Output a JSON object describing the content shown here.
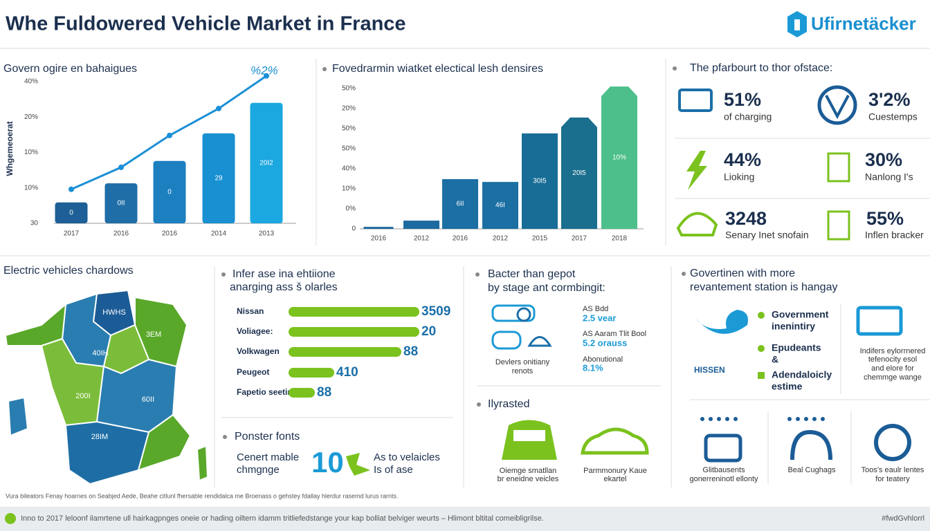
{
  "header": {
    "title": "Whe Fuldowered Vehicle Market in France",
    "logo": "Ufirnetäcker"
  },
  "chart_data": [
    {
      "type": "bar",
      "title": "Govern ogire en bahaigues",
      "annotation": "%2%",
      "y_axis_label": "Whgemeoerat",
      "y_labels": [
        "40%",
        "20%",
        "10%",
        "10%",
        "30"
      ],
      "categories": [
        "2017",
        "2016",
        "2016",
        "2014",
        "2013"
      ],
      "values": [
        5.9,
        11.3,
        17.6,
        25.4,
        34
      ],
      "bar_texts": [
        "0",
        "0II",
        "0",
        "29",
        "20I2"
      ],
      "bar_colors": [
        "#1d5f96",
        "#1f6ea8",
        "#1c7fc0",
        "#1890d1",
        "#1ba7e0"
      ],
      "ylim": [
        0,
        40
      ],
      "line": {
        "values": [
          9.6,
          15.8,
          24.8,
          32.4,
          41.6
        ],
        "color": "#1a8fd6"
      }
    },
    {
      "type": "bar",
      "title": "Fovedrarmin wiatket electical lesh densires",
      "y_labels": [
        "50%",
        "20%",
        "50%",
        "50%",
        "40%",
        "10%",
        "0%",
        "0"
      ],
      "categories": [
        "2016",
        "2012",
        "2016",
        "2012",
        "2015",
        "2017",
        "2018"
      ],
      "values": [
        1,
        4.1,
        24.8,
        23.4,
        47.6,
        55.5,
        71
      ],
      "bar_texts": [
        null,
        null,
        "6II",
        "46I",
        "30Ι5",
        "20I5",
        "10%"
      ],
      "bar_colors": [
        "#1d6aa0",
        "#1d6aa0",
        "#1b6fa3",
        "#1b6fa3",
        "#176d96",
        "#1a6e8e",
        "#4cbf8a"
      ],
      "ylim": [
        0,
        70
      ]
    },
    {
      "type": "hbar",
      "title": [
        "Infer ase ina ehtiione",
        "anarging ass š olarles"
      ],
      "categories": [
        "Nissan",
        "Voliagee:",
        "Volkwagen",
        "Peugeot",
        "Fapetio seetirar"
      ],
      "values": [
        189,
        189,
        163,
        66,
        38
      ],
      "bar_texts": [
        "3509",
        "20",
        "88",
        "410",
        "88"
      ],
      "color": "#7bc21e",
      "xlim": [
        0,
        189
      ]
    }
  ],
  "stats_panel": {
    "title": "The pfarbourt to thor ofstace:",
    "items": [
      {
        "value": "51%",
        "label": "of charging"
      },
      {
        "value": "3'2%",
        "label": "Cuestemps"
      },
      {
        "value": "44%",
        "label": "Lioking"
      },
      {
        "value": "30%",
        "label": "Nanlong I's"
      },
      {
        "value": "3248",
        "label": "Senary Inet snofain"
      },
      {
        "value": "55%",
        "label": "Inflen bracker"
      }
    ]
  },
  "map_panel": {
    "title": "Electric vehicles chardows",
    "regions": [
      "HWHS",
      "3EM",
      "40IH",
      "200I",
      "60II",
      "28IM"
    ]
  },
  "poster": {
    "title": "Ponster fonts",
    "left": [
      "Cenert mable",
      "chmgnge"
    ],
    "number": "10",
    "right": [
      "As to velaicles",
      "Is of ase"
    ]
  },
  "battery": {
    "title": [
      "Bacter than gepot",
      "by stage ant cormbingit:"
    ],
    "items": [
      {
        "label": "AS Bdd",
        "value": "2.5 vear"
      },
      {
        "label": "AS Aaram Tlit Bool",
        "value": "5.2 orauss"
      },
      {
        "label": "Abonutional",
        "value": "8.1%"
      }
    ],
    "caption": [
      "Devlers onitiany",
      "renots"
    ]
  },
  "illustrated": {
    "title": "Ilyrasted",
    "items": [
      [
        "Oiemge smatllan",
        "br eneidne veicles"
      ],
      [
        "Parmmonury Kaue",
        "ekartel"
      ]
    ]
  },
  "government": {
    "title": [
      "Govertinen with more",
      "revantement station is hangay"
    ],
    "items": [
      [
        "Government",
        "inenintiry"
      ],
      [
        "Epudeants",
        "&"
      ],
      [
        "Adendaloicly",
        "estime"
      ]
    ],
    "brand": "HISSEN",
    "note": [
      "Indifers eylorrnered",
      "tefenocity esol",
      "and elore for",
      "chemmge wange"
    ],
    "bottom": [
      [
        "Glitbausents",
        "gonerreninotl ellonty"
      ],
      [
        "Beal Cughags"
      ],
      [
        "Toos's eaulr lentes",
        "for teatery"
      ]
    ]
  },
  "footnote": "Vura bileators Fenay hoarnes on Seabjed Aede, Beahe citlunl fhersable rendidalca me Broenass o gehstey fdallay hlerdur rasemd lurus rarnts.",
  "footer": {
    "text": "Inno to 2017 leloonf ilamrtene ull hairkagpnges oneie or hading oiltern idamm tritliefedstange your kap bolliat belviger weurts – Hlimont bltital comeibligrilse.",
    "tag": "#fwdGvhlorrl"
  }
}
